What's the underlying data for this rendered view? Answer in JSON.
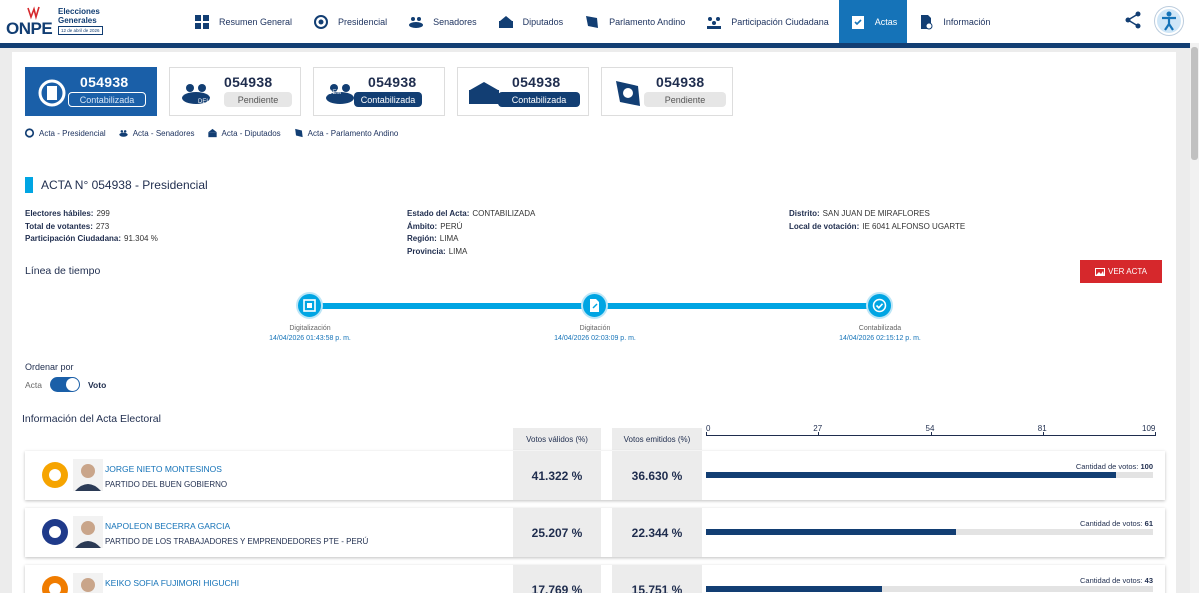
{
  "header": {
    "logo": {
      "brand": "ONPE",
      "line1": "Elecciones",
      "line2": "Generales",
      "date": "12 de abril de 2026"
    },
    "nav": [
      {
        "label": "Resumen General",
        "icon": "grid-icon",
        "active": false
      },
      {
        "label": "Presidencial",
        "icon": "peru-shield-icon",
        "active": false
      },
      {
        "label": "Senadores",
        "icon": "senate-icon",
        "active": false
      },
      {
        "label": "Diputados",
        "icon": "congress-building-icon",
        "active": false
      },
      {
        "label": "Parlamento Andino",
        "icon": "andean-parliament-icon",
        "active": false
      },
      {
        "label": "Participación Ciudadana",
        "icon": "people-icon",
        "active": false
      },
      {
        "label": "Actas",
        "icon": "checklist-icon",
        "active": true
      },
      {
        "label": "Información",
        "icon": "info-document-icon",
        "active": false
      }
    ]
  },
  "cards": [
    {
      "number": "054938",
      "status": "Contabilizada",
      "style": "active",
      "icon": "peru-shield-icon"
    },
    {
      "number": "054938",
      "status": "Pendiente",
      "style": "light",
      "icon": "deu-icon"
    },
    {
      "number": "054938",
      "status": "Contabilizada",
      "style": "dark",
      "icon": "dem-icon"
    },
    {
      "number": "054938",
      "status": "Contabilizada",
      "style": "dark",
      "icon": "congress-building-icon"
    },
    {
      "number": "054938",
      "status": "Pendiente",
      "style": "light",
      "icon": "andean-parliament-icon"
    }
  ],
  "acta_links": [
    {
      "label": "Acta - Presidencial",
      "icon": "peru-shield-icon"
    },
    {
      "label": "Acta - Senadores",
      "icon": "senate-icon"
    },
    {
      "label": "Acta - Diputados",
      "icon": "congress-building-icon"
    },
    {
      "label": "Acta - Parlamento Andino",
      "icon": "andean-parliament-icon"
    }
  ],
  "acta": {
    "title": "ACTA N° 054938 - Presidencial",
    "col1": [
      {
        "k": "Electores hábiles:",
        "v": "299"
      },
      {
        "k": "Total de votantes:",
        "v": "273"
      },
      {
        "k": "Participación Ciudadana:",
        "v": "91.304 %"
      }
    ],
    "col2": [
      {
        "k": "Estado del Acta:",
        "v": "CONTABILIZADA"
      },
      {
        "k": "Ámbito:",
        "v": "PERÚ"
      },
      {
        "k": "Región:",
        "v": "LIMA"
      },
      {
        "k": "Provincia:",
        "v": "LIMA"
      }
    ],
    "col3": [
      {
        "k": "Distrito:",
        "v": "SAN JUAN DE MIRAFLORES"
      },
      {
        "k": "Local de votación:",
        "v": "IE 6041 ALFONSO UGARTE"
      }
    ]
  },
  "timeline": {
    "heading": "Línea de tiempo",
    "button": "VER ACTA",
    "steps": [
      {
        "name": "Digitalización",
        "date": "14/04/2026 01:43:58 p. m.",
        "icon": "scan-icon"
      },
      {
        "name": "Digitación",
        "date": "14/04/2026 02:03:09 p. m.",
        "icon": "edit-document-icon"
      },
      {
        "name": "Contabilizada",
        "date": "14/04/2026 02:15:12 p. m.",
        "icon": "check-circle-icon"
      }
    ]
  },
  "order": {
    "label": "Ordenar por",
    "left": "Acta",
    "right": "Voto",
    "value": "Voto"
  },
  "results": {
    "heading": "Información del Acta Electoral",
    "col_validos": "Votos válidos (%)",
    "col_emitidos": "Votos emitidos (%)",
    "axis_ticks": [
      "0",
      "27",
      "54",
      "81",
      "109"
    ],
    "axis_max": 109,
    "votes_label": "Cantidad de votos:",
    "rows": [
      {
        "candidate": "JORGE NIETO MONTESINOS",
        "party": "PARTIDO DEL BUEN GOBIERNO",
        "validos": "41.322 %",
        "emitidos": "36.630 %",
        "votes": 100,
        "votes_text": "100",
        "party_color": "#f6a400"
      },
      {
        "candidate": "NAPOLEON BECERRA GARCIA",
        "party": "PARTIDO DE LOS TRABAJADORES Y EMPRENDEDORES PTE - PERÚ",
        "validos": "25.207 %",
        "emitidos": "22.344 %",
        "votes": 61,
        "votes_text": "61",
        "party_color": "#1f3a8a"
      },
      {
        "candidate": "KEIKO SOFIA FUJIMORI HIGUCHI",
        "party": "",
        "validos": "17.769 %",
        "emitidos": "15.751 %",
        "votes": 43,
        "votes_text": "43",
        "party_color": "#f07c00"
      }
    ]
  }
}
